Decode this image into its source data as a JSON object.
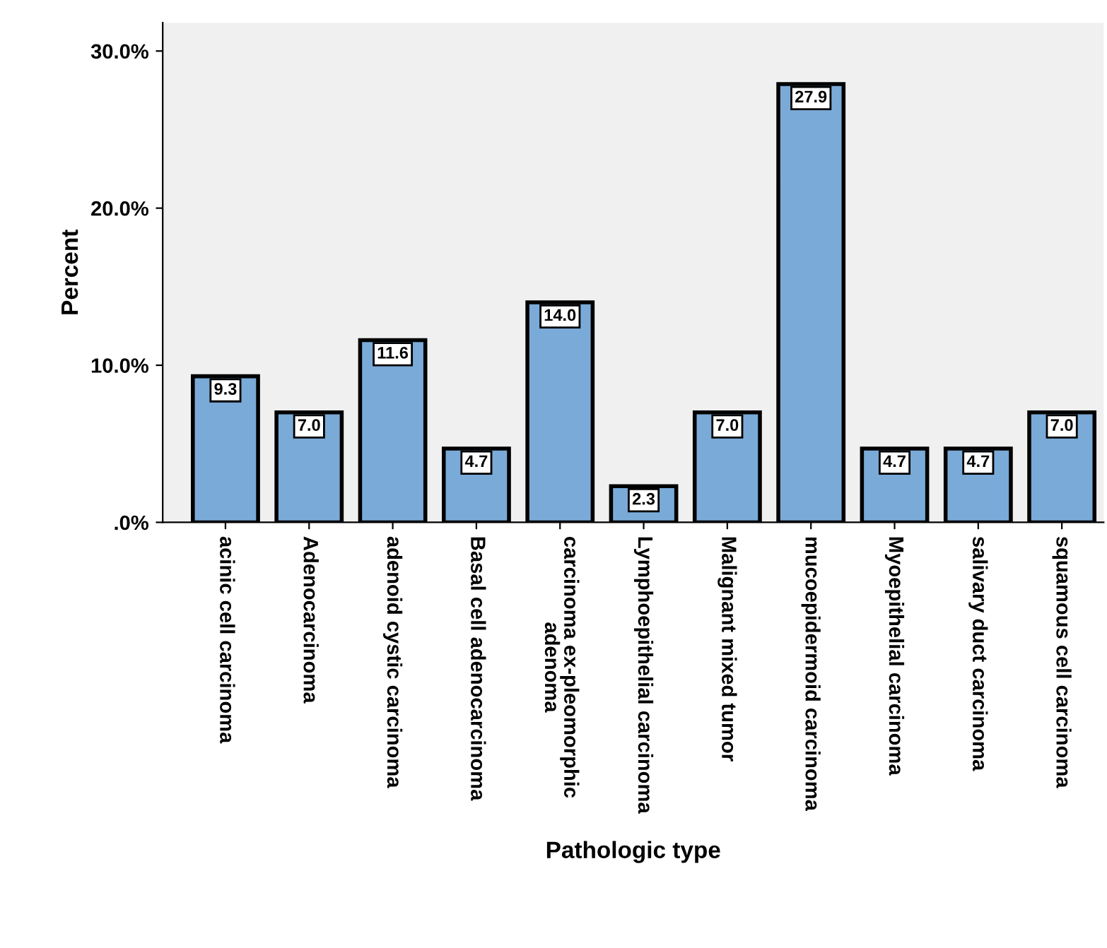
{
  "chart_data": {
    "type": "bar",
    "xlabel": "Pathologic type",
    "ylabel": "Percent",
    "categories": [
      "acinic cell carcinoma",
      "Adenocarcinoma",
      "adenoid cystic carcinoma",
      "Basal cell adenocarcinoma",
      "carcinoma ex-pleomorphic\nadenoma",
      "Lymphoepithelial carcinoma",
      "Malignant mixed tumor",
      "mucoepidermoid carcinoma",
      "Myoepithelial carcinoma",
      "salivary duct carcinoma",
      "squamous cell carcinoma"
    ],
    "values": [
      9.3,
      7.0,
      11.6,
      4.7,
      14.0,
      2.3,
      7.0,
      27.9,
      4.7,
      4.7,
      7.0
    ],
    "color": "#7aaad8",
    "ylim": [
      0,
      31.8
    ],
    "yticks": [
      {
        "value": 0,
        "label": ".0%"
      },
      {
        "value": 10,
        "label": "10.0%"
      },
      {
        "value": 20,
        "label": "20.0%"
      },
      {
        "value": 30,
        "label": "30.0%"
      }
    ],
    "value_labels": [
      "9.3",
      "7.0",
      "11.6",
      "4.7",
      "14.0",
      "2.3",
      "7.0",
      "27.9",
      "4.7",
      "4.7",
      "7.0"
    ],
    "grid": false,
    "legend": false
  }
}
